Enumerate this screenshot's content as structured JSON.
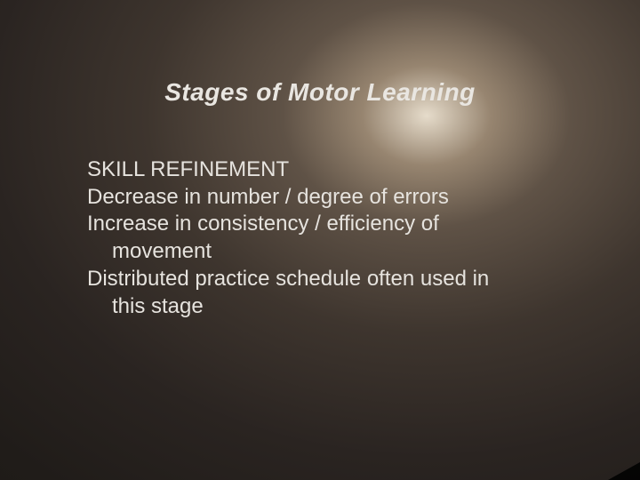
{
  "slide": {
    "title": "Stages of Motor Learning",
    "lines": [
      "SKILL REFINEMENT",
      "Decrease in number / degree of errors",
      "Increase in consistency / efficiency of",
      "movement",
      "Distributed practice schedule often used in",
      "this stage"
    ],
    "title_fontsize": 28,
    "body_fontsize": 24,
    "text_color": "#e6e3de",
    "title_color": "#e9e6e1",
    "background_gradient_center": "#e6dccb",
    "background_gradient_outer": "#1a1715",
    "indent_indices": [
      3,
      5
    ]
  }
}
